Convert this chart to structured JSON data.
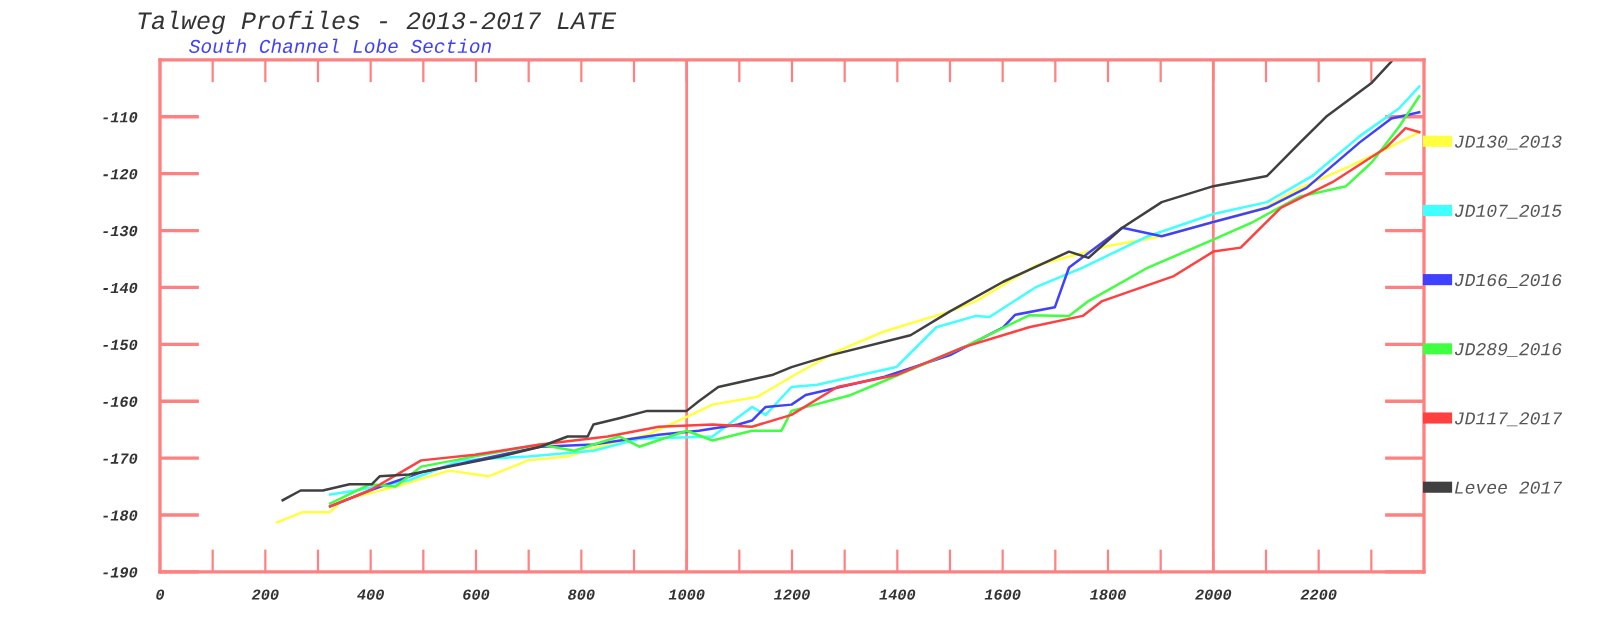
{
  "chart_data": {
    "type": "line",
    "title": "Talweg Profiles - 2013-2017 LATE",
    "subtitle": "South Channel Lobe Section",
    "xlim": [
      0,
      2400
    ],
    "ylim": [
      -190,
      -100
    ],
    "xticks": [
      0,
      {
        "value": 100,
        "label": null
      },
      200,
      {
        "value": 300,
        "label": null
      },
      400,
      {
        "value": 500,
        "label": null
      },
      600,
      {
        "value": 700,
        "label": null
      },
      800,
      {
        "value": 900,
        "label": null
      },
      1000,
      {
        "value": 1100,
        "label": null
      },
      1200,
      {
        "value": 1300,
        "label": null
      },
      1400,
      {
        "value": 1500,
        "label": null
      },
      1600,
      {
        "value": 1700,
        "label": null
      },
      1800,
      {
        "value": 1900,
        "label": null
      },
      2000,
      {
        "value": 2100,
        "label": null
      },
      2200,
      {
        "value": 2300,
        "label": null
      }
    ],
    "yticks": [
      -190,
      -180,
      -170,
      -160,
      -150,
      -140,
      -130,
      -120,
      -110
    ],
    "ref_lines": [
      {
        "axis": "x",
        "value": 1000,
        "label": null,
        "color": "#ff8080"
      },
      {
        "axis": "x",
        "value": 2000,
        "label": null,
        "color": "#ff8080"
      }
    ],
    "legend": "right",
    "grid": false,
    "marker": "none",
    "line_style": "solid",
    "series": [
      {
        "name": "JD130_2013",
        "color": "#ffff40",
        "x": [
          222,
          271,
          323,
          346,
          447,
          549,
          624,
          699,
          774,
          850,
          925,
          985,
          1049,
          1135,
          1199,
          1286,
          1376,
          1500,
          1549,
          1662,
          1801,
          1902,
          2000,
          2102,
          2165,
          2252,
          2316,
          2391
        ],
        "values": [
          -181.3,
          -179.5,
          -179.5,
          -177.4,
          -175,
          -172.2,
          -173.2,
          -170.4,
          -169.7,
          -167.6,
          -165.9,
          -163.4,
          -160.6,
          -159.2,
          -155.7,
          -151.2,
          -147.7,
          -144.2,
          -142.4,
          -136.2,
          -132.7,
          -131,
          -128.5,
          -125.8,
          -122.5,
          -119,
          -116.2,
          -112.7
        ]
      },
      {
        "name": "JD107_2015",
        "color": "#40ffff",
        "x": [
          323,
          372,
          473,
          571,
          699,
          823,
          910,
          1049,
          1124,
          1150,
          1199,
          1248,
          1398,
          1474,
          1549,
          1575,
          1662,
          1752,
          1876,
          2000,
          2102,
          2188,
          2278,
          2353,
          2391
        ],
        "values": [
          -176.4,
          -175.7,
          -173.9,
          -170.4,
          -169.7,
          -168.7,
          -166.6,
          -166.2,
          -161,
          -162.4,
          -157.5,
          -157.1,
          -154,
          -147,
          -145,
          -145.2,
          -140,
          -136.5,
          -131,
          -127.1,
          -125,
          -120.4,
          -113.4,
          -108.5,
          -104.7
        ]
      },
      {
        "name": "JD166_2016",
        "color": "#4040ff",
        "x": [
          323,
          398,
          496,
          598,
          722,
          823,
          947,
          1023,
          1098,
          1124,
          1150,
          1199,
          1226,
          1376,
          1500,
          1601,
          1624,
          1699,
          1726,
          1827,
          1902,
          2000,
          2102,
          2177,
          2278,
          2338,
          2391
        ],
        "values": [
          -178.5,
          -175.7,
          -172.5,
          -170.4,
          -168,
          -167.6,
          -165.9,
          -165.2,
          -164.1,
          -163.4,
          -161,
          -160.6,
          -158.9,
          -155.7,
          -151.9,
          -147,
          -144.8,
          -143.5,
          -136.5,
          -129.5,
          -131,
          -128.5,
          -126,
          -122.5,
          -114.5,
          -110.3,
          -109.2
        ]
      },
      {
        "name": "JD289_2016",
        "color": "#40ff40",
        "x": [
          323,
          398,
          447,
          496,
          598,
          722,
          786,
          872,
          910,
          1000,
          1049,
          1124,
          1180,
          1199,
          1312,
          1376,
          1526,
          1650,
          1726,
          1763,
          1876,
          2000,
          2075,
          2165,
          2252,
          2301,
          2353,
          2391
        ],
        "values": [
          -178,
          -174.6,
          -175,
          -171.5,
          -169.7,
          -167.6,
          -168.7,
          -166.2,
          -168,
          -165.2,
          -166.9,
          -165.2,
          -165.2,
          -161.7,
          -158.9,
          -156.4,
          -150.5,
          -144.9,
          -145,
          -142.4,
          -136.5,
          -131.6,
          -128.5,
          -124,
          -122.2,
          -118,
          -111.7,
          -106.4
        ]
      },
      {
        "name": "JD117_2017",
        "color": "#ff4040",
        "x": [
          323,
          398,
          496,
          598,
          722,
          850,
          947,
          1049,
          1124,
          1199,
          1286,
          1398,
          1526,
          1650,
          1752,
          1789,
          1925,
          2000,
          2052,
          2128,
          2226,
          2327,
          2365,
          2391
        ],
        "values": [
          -178.5,
          -175.7,
          -170.4,
          -169.4,
          -167.6,
          -166.2,
          -164.5,
          -164.1,
          -164.5,
          -162.4,
          -157.5,
          -155.4,
          -150.5,
          -147,
          -145,
          -142.4,
          -138,
          -133.7,
          -133,
          -126,
          -121.5,
          -115.5,
          -112,
          -112.7
        ]
      },
      {
        "name": "Levee 2017",
        "color": "#404040",
        "x": [
          233,
          267,
          309,
          360,
          402,
          417,
          473,
          571,
          647,
          722,
          774,
          812,
          823,
          872,
          925,
          1000,
          1023,
          1060,
          1113,
          1162,
          1199,
          1274,
          1425,
          1500,
          1601,
          1726,
          1763,
          1827,
          1902,
          2000,
          2102,
          2165,
          2214,
          2301,
          2338
        ],
        "values": [
          -177.4,
          -175.7,
          -175.7,
          -174.6,
          -174.6,
          -173.2,
          -172.9,
          -171.1,
          -169.7,
          -168,
          -166.2,
          -166.2,
          -164.1,
          -163,
          -161.7,
          -161.7,
          -160,
          -157.5,
          -156.4,
          -155.4,
          -154,
          -151.9,
          -148.4,
          -144.2,
          -139,
          -133.7,
          -134.8,
          -129.5,
          -125,
          -122.2,
          -120.4,
          -114.5,
          -110,
          -104,
          -100.3
        ]
      }
    ]
  }
}
